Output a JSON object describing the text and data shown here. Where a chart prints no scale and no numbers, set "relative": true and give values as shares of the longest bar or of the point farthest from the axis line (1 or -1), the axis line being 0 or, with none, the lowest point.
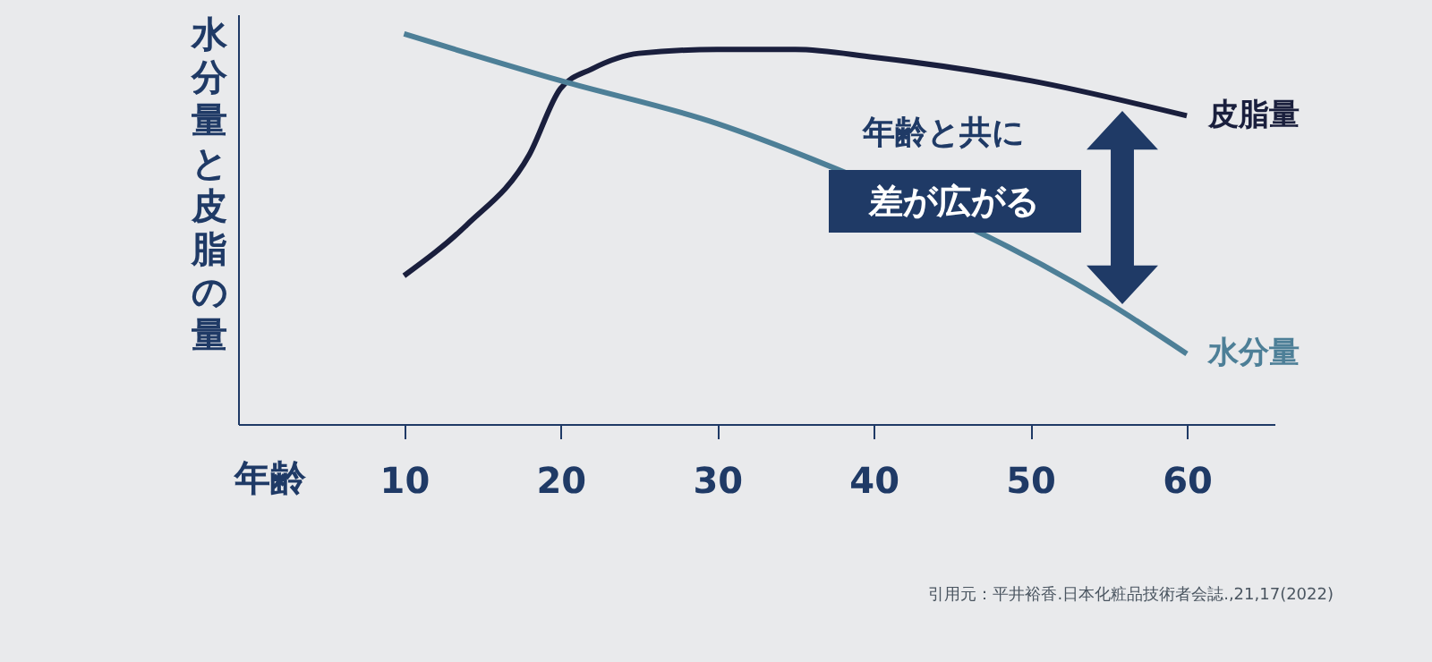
{
  "chart_data": {
    "type": "line",
    "relative": true,
    "xlabel": "年齢",
    "ylabel": "水分量と皮脂の量",
    "xlim": [
      -0.6,
      65.6
    ],
    "xticks": [
      10,
      20,
      30,
      40,
      50,
      60
    ],
    "grid": false,
    "marker": "none",
    "line_style": "solid",
    "annotations": [
      "年齢と共に",
      "差が広がる",
      "引用元：平井裕香.日本化粧品技術者会誌.,21,17(2022)"
    ],
    "series": [
      {
        "name": "皮脂量",
        "color": "#1a1f3d",
        "x": [
          10,
          14,
          18,
          20,
          22,
          25,
          30,
          35,
          40,
          50,
          60
        ],
        "values": [
          0.38,
          0.51,
          0.69,
          0.86,
          0.91,
          0.95,
          0.96,
          0.96,
          0.94,
          0.88,
          0.79
        ]
      },
      {
        "name": "水分量",
        "color": "#4d7f97",
        "x": [
          10,
          20,
          30,
          36,
          55,
          60
        ],
        "values": [
          1.0,
          0.88,
          0.77,
          0.68,
          0.31,
          0.18
        ]
      }
    ]
  }
}
